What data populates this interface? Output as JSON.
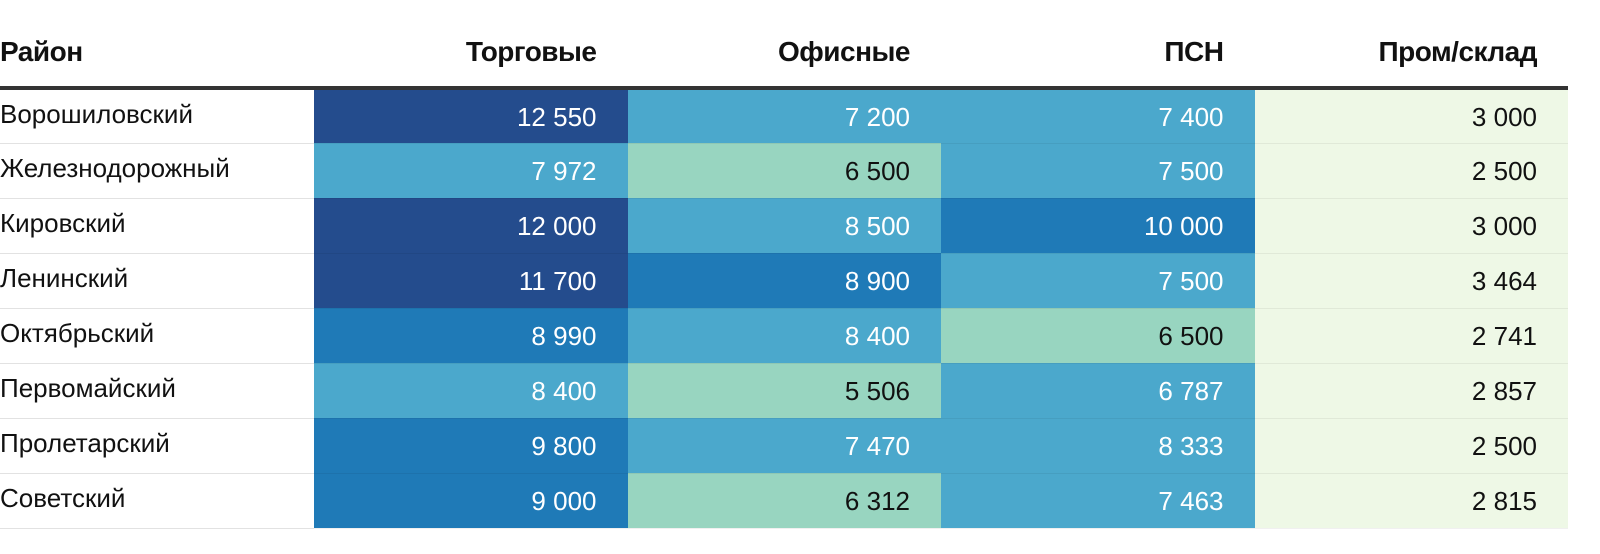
{
  "chart_data": {
    "type": "table",
    "columns": [
      "Район",
      "Торговые",
      "Офисные",
      "ПСН",
      "Пром/склад"
    ],
    "rows": [
      {
        "name": "Ворошиловский",
        "values": [
          "12 550",
          "7 200",
          "7 400",
          "3 000"
        ],
        "colors": [
          "#244c8d",
          "#4ba8cc",
          "#4ba8cc",
          "#eef8e6"
        ]
      },
      {
        "name": "Железнодорожный",
        "values": [
          "7 972",
          "6 500",
          "7 500",
          "2 500"
        ],
        "colors": [
          "#4ba8cc",
          "#98d5c0",
          "#4ba8cc",
          "#eef8e6"
        ]
      },
      {
        "name": "Кировский",
        "values": [
          "12 000",
          "8 500",
          "10 000",
          "3 000"
        ],
        "colors": [
          "#244c8d",
          "#4ba8cc",
          "#1f7ab7",
          "#eef8e6"
        ]
      },
      {
        "name": "Ленинский",
        "values": [
          "11 700",
          "8 900",
          "7 500",
          "3 464"
        ],
        "colors": [
          "#244c8d",
          "#1f7ab7",
          "#4ba8cc",
          "#eef8e6"
        ]
      },
      {
        "name": "Октябрьский",
        "values": [
          "8 990",
          "8 400",
          "6 500",
          "2 741"
        ],
        "colors": [
          "#1f7ab7",
          "#4ba8cc",
          "#98d5c0",
          "#eef8e6"
        ]
      },
      {
        "name": "Первомайский",
        "values": [
          "8 400",
          "5 506",
          "6 787",
          "2 857"
        ],
        "colors": [
          "#4ba8cc",
          "#98d5c0",
          "#4ba8cc",
          "#eef8e6"
        ]
      },
      {
        "name": "Пролетарский",
        "values": [
          "9 800",
          "7 470",
          "8 333",
          "2 500"
        ],
        "colors": [
          "#1f7ab7",
          "#4ba8cc",
          "#4ba8cc",
          "#eef8e6"
        ]
      },
      {
        "name": "Советский",
        "values": [
          "9 000",
          "6 312",
          "7 463",
          "2 815"
        ],
        "colors": [
          "#1f7ab7",
          "#98d5c0",
          "#4ba8cc",
          "#eef8e6"
        ]
      }
    ],
    "text_colors": {
      "dark_bg": "#ffffff",
      "light_bg": "#111111"
    }
  }
}
